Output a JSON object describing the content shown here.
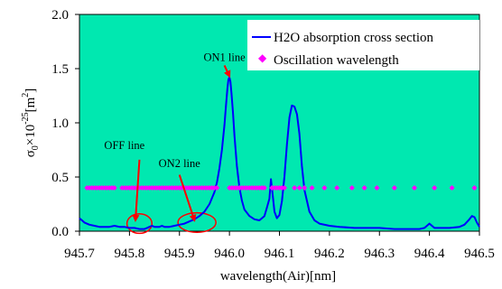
{
  "chart_data": {
    "type": "line",
    "xlabel": "wavelength(Air)[nm]",
    "ylabel": "σ0×10^-25[m^2]",
    "ylabel_parts": {
      "sigma": "σ",
      "sub": "0",
      "times": "×10",
      "exp": "-25",
      "unit_open": "[m",
      "unit_exp": "2",
      "unit_close": "]"
    },
    "xlim": [
      945.7,
      946.5
    ],
    "ylim": [
      0,
      2.0
    ],
    "xticks": [
      "945.7",
      "945.8",
      "945.9",
      "946.0",
      "946.1",
      "946.2",
      "946.3",
      "946.4",
      "946.5"
    ],
    "yticks": [
      "0.0",
      "0.5",
      "1.0",
      "1.5",
      "2.0"
    ],
    "grid": false,
    "plot_background": "#00e8b0",
    "legend_position": "top-right",
    "series": [
      {
        "name": "H2O absorption cross section",
        "kind": "line",
        "color": "#0000ff",
        "x": [
          945.7,
          945.705,
          945.71,
          945.72,
          945.73,
          945.74,
          945.75,
          945.76,
          945.77,
          945.78,
          945.79,
          945.8,
          945.81,
          945.82,
          945.83,
          945.835,
          945.84,
          945.845,
          945.85,
          945.855,
          945.86,
          945.865,
          945.87,
          945.88,
          945.89,
          945.9,
          945.91,
          945.92,
          945.93,
          945.94,
          945.95,
          945.96,
          945.97,
          945.975,
          945.98,
          945.985,
          945.99,
          945.993,
          945.996,
          945.998,
          946.0,
          946.002,
          946.004,
          946.007,
          946.01,
          946.015,
          946.02,
          946.025,
          946.03,
          946.04,
          946.05,
          946.06,
          946.07,
          946.075,
          946.08,
          946.083,
          946.086,
          946.09,
          946.095,
          946.1,
          946.105,
          946.11,
          946.115,
          946.12,
          946.125,
          946.13,
          946.135,
          946.14,
          946.145,
          946.15,
          946.16,
          946.17,
          946.18,
          946.2,
          946.22,
          946.25,
          946.28,
          946.3,
          946.33,
          946.36,
          946.38,
          946.39,
          946.395,
          946.4,
          946.405,
          946.41,
          946.42,
          946.44,
          946.46,
          946.47,
          946.48,
          946.485,
          946.49,
          946.495,
          946.5
        ],
        "y": [
          0.12,
          0.1,
          0.08,
          0.06,
          0.05,
          0.04,
          0.04,
          0.04,
          0.05,
          0.04,
          0.04,
          0.03,
          0.03,
          0.02,
          0.02,
          0.03,
          0.04,
          0.05,
          0.04,
          0.04,
          0.04,
          0.05,
          0.04,
          0.04,
          0.05,
          0.06,
          0.07,
          0.09,
          0.11,
          0.14,
          0.18,
          0.25,
          0.36,
          0.45,
          0.58,
          0.75,
          0.98,
          1.15,
          1.32,
          1.4,
          1.42,
          1.38,
          1.28,
          1.1,
          0.88,
          0.6,
          0.4,
          0.28,
          0.2,
          0.14,
          0.11,
          0.1,
          0.14,
          0.22,
          0.3,
          0.48,
          0.36,
          0.18,
          0.12,
          0.15,
          0.28,
          0.5,
          0.8,
          1.05,
          1.16,
          1.15,
          1.08,
          0.9,
          0.6,
          0.38,
          0.18,
          0.1,
          0.07,
          0.05,
          0.04,
          0.03,
          0.03,
          0.03,
          0.02,
          0.02,
          0.02,
          0.03,
          0.05,
          0.07,
          0.05,
          0.03,
          0.03,
          0.03,
          0.04,
          0.06,
          0.11,
          0.14,
          0.13,
          0.08,
          0.04
        ]
      },
      {
        "name": "Oscillation wavelength",
        "kind": "scatter",
        "color": "#ff00ff",
        "x": [
          945.715,
          945.72,
          945.725,
          945.73,
          945.735,
          945.74,
          945.745,
          945.75,
          945.755,
          945.76,
          945.765,
          945.77,
          945.785,
          945.79,
          945.795,
          945.8,
          945.805,
          945.81,
          945.815,
          945.82,
          945.825,
          945.83,
          945.835,
          945.84,
          945.845,
          945.85,
          945.855,
          945.86,
          945.865,
          945.87,
          945.875,
          945.88,
          945.885,
          945.89,
          945.895,
          945.9,
          945.905,
          945.91,
          945.915,
          945.92,
          945.925,
          945.93,
          945.935,
          945.94,
          945.945,
          945.95,
          945.955,
          945.96,
          945.965,
          945.97,
          945.975,
          946.0,
          946.005,
          946.01,
          946.015,
          946.02,
          946.025,
          946.03,
          946.035,
          946.04,
          946.045,
          946.05,
          946.055,
          946.06,
          946.065,
          946.07,
          946.085,
          946.09,
          946.095,
          946.1,
          946.105,
          946.11,
          946.13,
          946.14,
          946.15,
          946.165,
          946.19,
          946.215,
          946.245,
          946.27,
          946.295,
          946.33,
          946.37,
          946.41,
          946.445,
          946.49
        ],
        "y": [
          0.4,
          0.4,
          0.4,
          0.4,
          0.4,
          0.4,
          0.4,
          0.4,
          0.4,
          0.4,
          0.4,
          0.4,
          0.4,
          0.4,
          0.4,
          0.4,
          0.4,
          0.4,
          0.4,
          0.4,
          0.4,
          0.4,
          0.4,
          0.4,
          0.4,
          0.4,
          0.4,
          0.4,
          0.4,
          0.4,
          0.4,
          0.4,
          0.4,
          0.4,
          0.4,
          0.4,
          0.4,
          0.4,
          0.4,
          0.4,
          0.4,
          0.4,
          0.4,
          0.4,
          0.4,
          0.4,
          0.4,
          0.4,
          0.4,
          0.4,
          0.4,
          0.4,
          0.4,
          0.4,
          0.4,
          0.4,
          0.4,
          0.4,
          0.4,
          0.4,
          0.4,
          0.4,
          0.4,
          0.4,
          0.4,
          0.4,
          0.4,
          0.4,
          0.4,
          0.4,
          0.4,
          0.4,
          0.4,
          0.4,
          0.4,
          0.4,
          0.4,
          0.4,
          0.4,
          0.4,
          0.4,
          0.4,
          0.4,
          0.4,
          0.4,
          0.4
        ]
      }
    ],
    "annotations": [
      {
        "text": "ON1 line",
        "label_x": 945.99,
        "label_y": 1.57,
        "arrow_from": [
          945.99,
          1.53
        ],
        "arrow_to": [
          946.0,
          1.43
        ],
        "color": "#ff0000"
      },
      {
        "text": "OFF line",
        "label_x": 945.79,
        "label_y": 0.76,
        "arrow_from": [
          945.82,
          0.66
        ],
        "arrow_to": [
          945.812,
          0.1
        ],
        "color": "#ff0000"
      },
      {
        "text": "ON2 line",
        "label_x": 945.9,
        "label_y": 0.59,
        "arrow_from": [
          945.9,
          0.52
        ],
        "arrow_to": [
          945.93,
          0.1
        ],
        "color": "#ff0000"
      }
    ],
    "highlight_ellipses": [
      {
        "cx": 945.82,
        "cy": 0.07,
        "rx": 0.025,
        "ry": 0.09,
        "color": "#ff0000"
      },
      {
        "cx": 945.935,
        "cy": 0.08,
        "rx": 0.038,
        "ry": 0.09,
        "color": "#ff0000"
      }
    ]
  }
}
